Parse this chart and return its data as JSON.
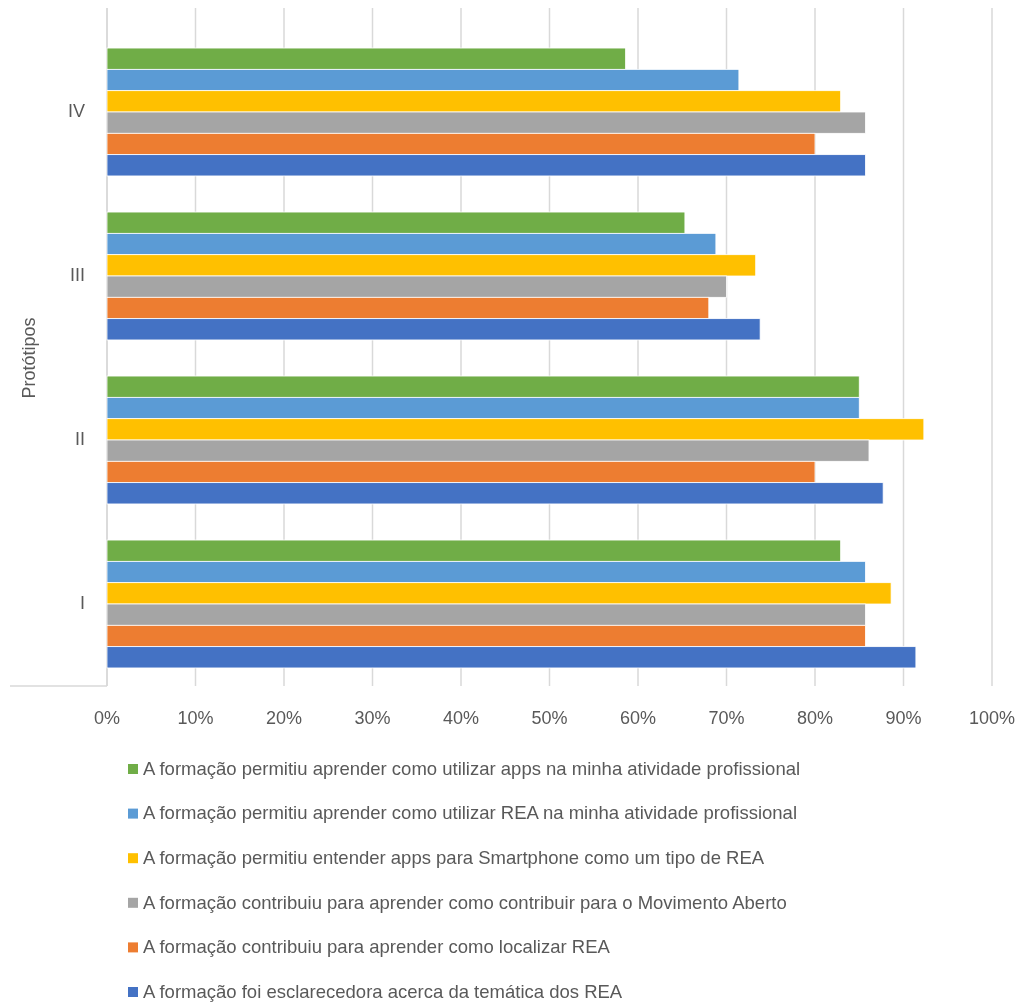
{
  "chart_data": {
    "type": "bar",
    "orientation": "horizontal",
    "ylabel": "Protótipos",
    "categories": [
      "IV",
      "III",
      "II",
      "I"
    ],
    "xlim": [
      0,
      100
    ],
    "xticks": [
      {
        "value": 0,
        "label": "0%"
      },
      {
        "value": 10,
        "label": "10%"
      },
      {
        "value": 20,
        "label": "20%"
      },
      {
        "value": 30,
        "label": "30%"
      },
      {
        "value": 40,
        "label": "40%"
      },
      {
        "value": 50,
        "label": "50%"
      },
      {
        "value": 60,
        "label": "60%"
      },
      {
        "value": 70,
        "label": "70%"
      },
      {
        "value": 80,
        "label": "80%"
      },
      {
        "value": 90,
        "label": "90%"
      },
      {
        "value": 100,
        "label": "100%"
      }
    ],
    "grid": "x",
    "legend": "bottom",
    "series": [
      {
        "name": "A formação permitiu aprender como utilizar apps na minha atividade profissional",
        "color": "#70ad47",
        "values": [
          58.6,
          65.3,
          85.0,
          82.9
        ]
      },
      {
        "name": "A formação permitiu aprender como utilizar REA na minha atividade profissional",
        "color": "#5b9bd5",
        "values": [
          71.4,
          68.8,
          85.0,
          85.7
        ]
      },
      {
        "name": "A formação permitiu entender apps para Smartphone como um tipo de REA",
        "color": "#ffc000",
        "values": [
          82.9,
          73.3,
          92.3,
          88.6
        ]
      },
      {
        "name": "A formação contribuiu para aprender como contribuir para o Movimento Aberto",
        "color": "#a5a5a5",
        "values": [
          85.7,
          70.0,
          86.1,
          85.7
        ]
      },
      {
        "name": "A formação contribuiu para aprender como localizar REA",
        "color": "#ed7d31",
        "values": [
          80.0,
          68.0,
          80.0,
          85.7
        ]
      },
      {
        "name": "A formação foi esclarecedora acerca da temática dos REA",
        "color": "#4472c4",
        "values": [
          85.7,
          73.8,
          87.7,
          91.4
        ]
      }
    ]
  }
}
